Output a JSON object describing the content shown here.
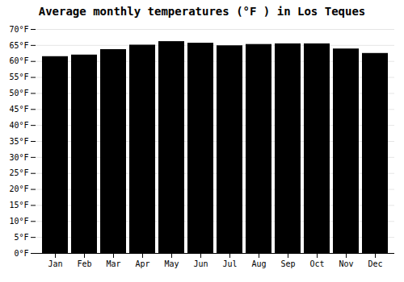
{
  "chart_data": {
    "type": "bar",
    "title": "Average monthly temperatures (°F ) in Los Teques",
    "categories": [
      "Jan",
      "Feb",
      "Mar",
      "Apr",
      "May",
      "Jun",
      "Jul",
      "Aug",
      "Sep",
      "Oct",
      "Nov",
      "Dec"
    ],
    "values": [
      61.5,
      62.0,
      63.7,
      65.1,
      66.2,
      65.7,
      64.9,
      65.3,
      65.5,
      65.5,
      63.9,
      62.5
    ],
    "ylim": [
      0,
      70
    ],
    "yticks": [
      {
        "value": 0,
        "label": "0°F"
      },
      {
        "value": 5,
        "label": "5°F"
      },
      {
        "value": 10,
        "label": "10°F"
      },
      {
        "value": 15,
        "label": "15°F"
      },
      {
        "value": 20,
        "label": "20°F"
      },
      {
        "value": 25,
        "label": "25°F"
      },
      {
        "value": 30,
        "label": "30°F"
      },
      {
        "value": 35,
        "label": "35°F"
      },
      {
        "value": 40,
        "label": "40°F"
      },
      {
        "value": 45,
        "label": "45°F"
      },
      {
        "value": 50,
        "label": "50°F"
      },
      {
        "value": 55,
        "label": "55°F"
      },
      {
        "value": 60,
        "label": "60°F"
      },
      {
        "value": 65,
        "label": "65°F"
      },
      {
        "value": 70,
        "label": "70°F"
      }
    ],
    "grid": true
  }
}
